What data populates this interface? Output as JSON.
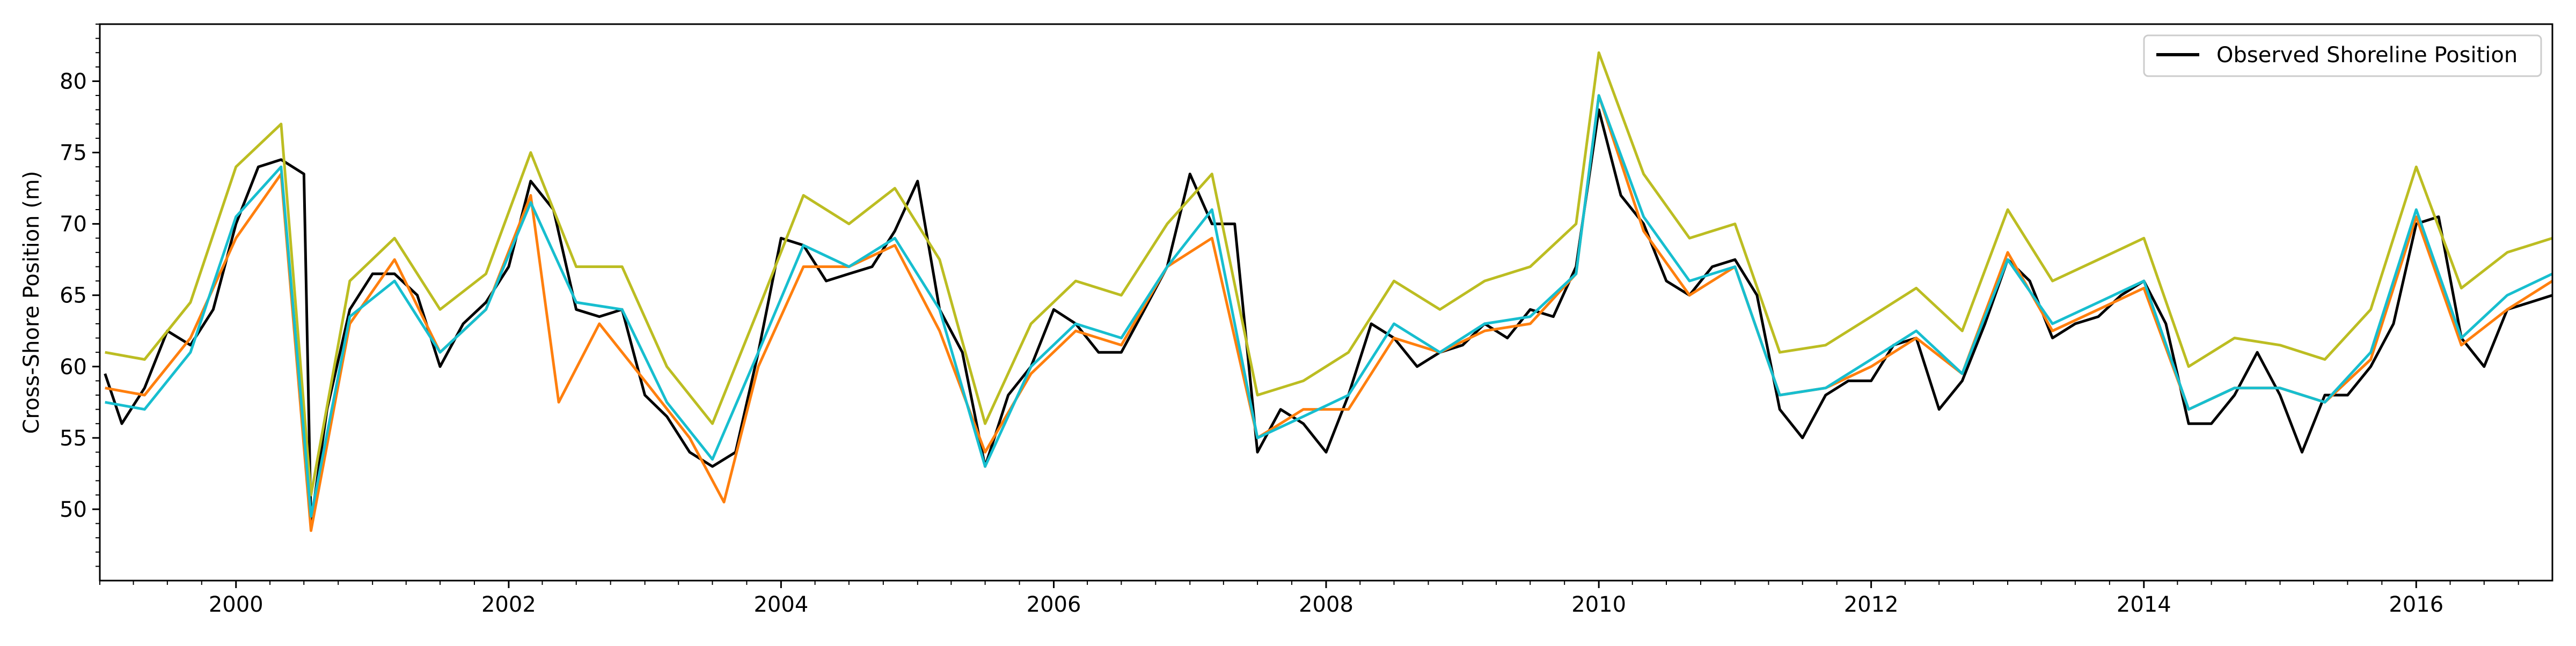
{
  "chart_data": {
    "type": "line",
    "title": "",
    "xlabel": "",
    "ylabel": "Cross-Shore Position (m)",
    "x_range": [
      "1999-01-01",
      "2016-12-31"
    ],
    "ylim": [
      45,
      84
    ],
    "grid": false,
    "legend_position": "top-right",
    "x_ticks": [
      "2000",
      "2002",
      "2004",
      "2006",
      "2008",
      "2010",
      "2012",
      "2014",
      "2016"
    ],
    "y_ticks": [
      50,
      55,
      60,
      65,
      70,
      75,
      80
    ],
    "series": [
      {
        "name": "Observed Shoreline Position",
        "color": "#000000",
        "points": [
          [
            "1999-01-15",
            59.5
          ],
          [
            "1999-03-01",
            56.0
          ],
          [
            "1999-05-01",
            58.5
          ],
          [
            "1999-07-01",
            62.5
          ],
          [
            "1999-09-01",
            61.5
          ],
          [
            "1999-11-01",
            64.0
          ],
          [
            "2000-01-01",
            70.0
          ],
          [
            "2000-03-01",
            74.0
          ],
          [
            "2000-05-01",
            74.5
          ],
          [
            "2000-07-01",
            73.5
          ],
          [
            "2000-07-20",
            49.0
          ],
          [
            "2000-09-01",
            57.0
          ],
          [
            "2000-11-01",
            64.0
          ],
          [
            "2001-01-01",
            66.5
          ],
          [
            "2001-03-01",
            66.5
          ],
          [
            "2001-05-01",
            65.0
          ],
          [
            "2001-07-01",
            60.0
          ],
          [
            "2001-09-01",
            63.0
          ],
          [
            "2001-11-01",
            64.5
          ],
          [
            "2002-01-01",
            67.0
          ],
          [
            "2002-03-01",
            73.0
          ],
          [
            "2002-05-01",
            71.0
          ],
          [
            "2002-07-01",
            64.0
          ],
          [
            "2002-09-01",
            63.5
          ],
          [
            "2002-11-01",
            64.0
          ],
          [
            "2003-01-01",
            58.0
          ],
          [
            "2003-03-01",
            56.5
          ],
          [
            "2003-05-01",
            54.0
          ],
          [
            "2003-07-01",
            53.0
          ],
          [
            "2003-09-01",
            54.0
          ],
          [
            "2003-11-01",
            61.0
          ],
          [
            "2004-01-01",
            69.0
          ],
          [
            "2004-03-01",
            68.5
          ],
          [
            "2004-05-01",
            66.0
          ],
          [
            "2004-07-01",
            66.5
          ],
          [
            "2004-09-01",
            67.0
          ],
          [
            "2004-11-01",
            69.5
          ],
          [
            "2005-01-01",
            73.0
          ],
          [
            "2005-03-01",
            64.0
          ],
          [
            "2005-05-01",
            61.0
          ],
          [
            "2005-07-01",
            53.0
          ],
          [
            "2005-09-01",
            58.0
          ],
          [
            "2005-11-01",
            60.0
          ],
          [
            "2006-01-01",
            64.0
          ],
          [
            "2006-03-01",
            63.0
          ],
          [
            "2006-05-01",
            61.0
          ],
          [
            "2006-07-01",
            61.0
          ],
          [
            "2006-09-01",
            64.0
          ],
          [
            "2006-11-01",
            67.0
          ],
          [
            "2007-01-01",
            73.5
          ],
          [
            "2007-03-01",
            70.0
          ],
          [
            "2007-05-01",
            70.0
          ],
          [
            "2007-07-01",
            54.0
          ],
          [
            "2007-09-01",
            57.0
          ],
          [
            "2007-11-01",
            56.0
          ],
          [
            "2008-01-01",
            54.0
          ],
          [
            "2008-03-01",
            58.0
          ],
          [
            "2008-05-01",
            63.0
          ],
          [
            "2008-07-01",
            62.0
          ],
          [
            "2008-09-01",
            60.0
          ],
          [
            "2008-11-01",
            61.0
          ],
          [
            "2009-01-01",
            61.5
          ],
          [
            "2009-03-01",
            63.0
          ],
          [
            "2009-05-01",
            62.0
          ],
          [
            "2009-07-01",
            64.0
          ],
          [
            "2009-09-01",
            63.5
          ],
          [
            "2009-11-01",
            67.0
          ],
          [
            "2010-01-01",
            78.0
          ],
          [
            "2010-03-01",
            72.0
          ],
          [
            "2010-05-01",
            70.0
          ],
          [
            "2010-07-01",
            66.0
          ],
          [
            "2010-09-01",
            65.0
          ],
          [
            "2010-11-01",
            67.0
          ],
          [
            "2011-01-01",
            67.5
          ],
          [
            "2011-03-01",
            65.0
          ],
          [
            "2011-05-01",
            57.0
          ],
          [
            "2011-07-01",
            55.0
          ],
          [
            "2011-09-01",
            58.0
          ],
          [
            "2011-11-01",
            59.0
          ],
          [
            "2012-01-01",
            59.0
          ],
          [
            "2012-03-01",
            61.5
          ],
          [
            "2012-05-01",
            62.0
          ],
          [
            "2012-07-01",
            57.0
          ],
          [
            "2012-09-01",
            59.0
          ],
          [
            "2012-11-01",
            63.0
          ],
          [
            "2013-01-01",
            67.5
          ],
          [
            "2013-03-01",
            66.0
          ],
          [
            "2013-05-01",
            62.0
          ],
          [
            "2013-07-01",
            63.0
          ],
          [
            "2013-09-01",
            63.5
          ],
          [
            "2013-11-01",
            65.0
          ],
          [
            "2014-01-01",
            66.0
          ],
          [
            "2014-03-01",
            63.0
          ],
          [
            "2014-05-01",
            56.0
          ],
          [
            "2014-07-01",
            56.0
          ],
          [
            "2014-09-01",
            58.0
          ],
          [
            "2014-11-01",
            61.0
          ],
          [
            "2015-01-01",
            58.0
          ],
          [
            "2015-03-01",
            54.0
          ],
          [
            "2015-05-01",
            58.0
          ],
          [
            "2015-07-01",
            58.0
          ],
          [
            "2015-09-01",
            60.0
          ],
          [
            "2015-11-01",
            63.0
          ],
          [
            "2016-01-01",
            70.0
          ],
          [
            "2016-03-01",
            70.5
          ],
          [
            "2016-05-01",
            62.0
          ],
          [
            "2016-07-01",
            60.0
          ],
          [
            "2016-09-01",
            64.0
          ],
          [
            "2016-11-01",
            64.5
          ],
          [
            "2016-12-31",
            65.0
          ]
        ]
      },
      {
        "color": "#ff7f0e",
        "points": [
          [
            "1999-01-15",
            58.5
          ],
          [
            "1999-05-01",
            58.0
          ],
          [
            "1999-09-01",
            62.0
          ],
          [
            "2000-01-01",
            69.0
          ],
          [
            "2000-05-01",
            73.5
          ],
          [
            "2000-07-20",
            48.5
          ],
          [
            "2000-11-01",
            63.0
          ],
          [
            "2001-03-01",
            67.5
          ],
          [
            "2001-07-01",
            61.0
          ],
          [
            "2001-11-01",
            64.0
          ],
          [
            "2002-03-01",
            72.0
          ],
          [
            "2002-05-15",
            57.5
          ],
          [
            "2002-09-01",
            63.0
          ],
          [
            "2003-01-01",
            59.0
          ],
          [
            "2003-05-01",
            55.0
          ],
          [
            "2003-08-01",
            50.5
          ],
          [
            "2003-11-01",
            60.0
          ],
          [
            "2004-03-01",
            67.0
          ],
          [
            "2004-07-01",
            67.0
          ],
          [
            "2004-11-01",
            68.5
          ],
          [
            "2005-03-01",
            62.5
          ],
          [
            "2005-07-01",
            54.0
          ],
          [
            "2005-11-01",
            59.5
          ],
          [
            "2006-03-01",
            62.5
          ],
          [
            "2006-07-01",
            61.5
          ],
          [
            "2006-11-01",
            67.0
          ],
          [
            "2007-03-01",
            69.0
          ],
          [
            "2007-07-01",
            55.0
          ],
          [
            "2007-11-01",
            57.0
          ],
          [
            "2008-03-01",
            57.0
          ],
          [
            "2008-07-01",
            62.0
          ],
          [
            "2008-11-01",
            61.0
          ],
          [
            "2009-03-01",
            62.5
          ],
          [
            "2009-07-01",
            63.0
          ],
          [
            "2009-11-01",
            66.5
          ],
          [
            "2010-01-01",
            79.0
          ],
          [
            "2010-05-01",
            69.5
          ],
          [
            "2010-09-01",
            65.0
          ],
          [
            "2011-01-01",
            67.0
          ],
          [
            "2011-05-01",
            58.0
          ],
          [
            "2011-09-01",
            58.5
          ],
          [
            "2012-01-01",
            60.0
          ],
          [
            "2012-05-01",
            62.0
          ],
          [
            "2012-09-01",
            59.5
          ],
          [
            "2013-01-01",
            68.0
          ],
          [
            "2013-05-01",
            62.5
          ],
          [
            "2013-09-01",
            64.0
          ],
          [
            "2014-01-01",
            65.5
          ],
          [
            "2014-05-01",
            57.0
          ],
          [
            "2014-09-01",
            58.5
          ],
          [
            "2015-01-01",
            58.5
          ],
          [
            "2015-05-01",
            57.5
          ],
          [
            "2015-09-01",
            60.5
          ],
          [
            "2016-01-01",
            70.5
          ],
          [
            "2016-05-01",
            61.5
          ],
          [
            "2016-09-01",
            64.0
          ],
          [
            "2016-12-31",
            66.0
          ]
        ]
      },
      {
        "color": "#bcbd22",
        "points": [
          [
            "1999-01-15",
            61.0
          ],
          [
            "1999-05-01",
            60.5
          ],
          [
            "1999-09-01",
            64.5
          ],
          [
            "2000-01-01",
            74.0
          ],
          [
            "2000-05-01",
            77.0
          ],
          [
            "2000-07-20",
            51.0
          ],
          [
            "2000-11-01",
            66.0
          ],
          [
            "2001-03-01",
            69.0
          ],
          [
            "2001-07-01",
            64.0
          ],
          [
            "2001-11-01",
            66.5
          ],
          [
            "2002-03-01",
            75.0
          ],
          [
            "2002-07-01",
            67.0
          ],
          [
            "2002-11-01",
            67.0
          ],
          [
            "2003-03-01",
            60.0
          ],
          [
            "2003-07-01",
            56.0
          ],
          [
            "2003-11-01",
            64.0
          ],
          [
            "2004-03-01",
            72.0
          ],
          [
            "2004-07-01",
            70.0
          ],
          [
            "2004-11-01",
            72.5
          ],
          [
            "2005-03-01",
            67.5
          ],
          [
            "2005-07-01",
            56.0
          ],
          [
            "2005-11-01",
            63.0
          ],
          [
            "2006-03-01",
            66.0
          ],
          [
            "2006-07-01",
            65.0
          ],
          [
            "2006-11-01",
            70.0
          ],
          [
            "2007-03-01",
            73.5
          ],
          [
            "2007-07-01",
            58.0
          ],
          [
            "2007-11-01",
            59.0
          ],
          [
            "2008-03-01",
            61.0
          ],
          [
            "2008-07-01",
            66.0
          ],
          [
            "2008-11-01",
            64.0
          ],
          [
            "2009-03-01",
            66.0
          ],
          [
            "2009-07-01",
            67.0
          ],
          [
            "2009-11-01",
            70.0
          ],
          [
            "2010-01-01",
            82.0
          ],
          [
            "2010-05-01",
            73.5
          ],
          [
            "2010-09-01",
            69.0
          ],
          [
            "2011-01-01",
            70.0
          ],
          [
            "2011-05-01",
            61.0
          ],
          [
            "2011-09-01",
            61.5
          ],
          [
            "2012-01-01",
            63.5
          ],
          [
            "2012-05-01",
            65.5
          ],
          [
            "2012-09-01",
            62.5
          ],
          [
            "2013-01-01",
            71.0
          ],
          [
            "2013-05-01",
            66.0
          ],
          [
            "2013-09-01",
            67.5
          ],
          [
            "2014-01-01",
            69.0
          ],
          [
            "2014-05-01",
            60.0
          ],
          [
            "2014-09-01",
            62.0
          ],
          [
            "2015-01-01",
            61.5
          ],
          [
            "2015-05-01",
            60.5
          ],
          [
            "2015-09-01",
            64.0
          ],
          [
            "2016-01-01",
            74.0
          ],
          [
            "2016-05-01",
            65.5
          ],
          [
            "2016-09-01",
            68.0
          ],
          [
            "2016-12-31",
            69.0
          ]
        ]
      },
      {
        "color": "#17becf",
        "points": [
          [
            "1999-01-15",
            57.5
          ],
          [
            "1999-05-01",
            57.0
          ],
          [
            "1999-09-01",
            61.0
          ],
          [
            "2000-01-01",
            70.5
          ],
          [
            "2000-05-01",
            74.0
          ],
          [
            "2000-07-20",
            49.5
          ],
          [
            "2000-11-01",
            63.5
          ],
          [
            "2001-03-01",
            66.0
          ],
          [
            "2001-07-01",
            61.0
          ],
          [
            "2001-11-01",
            64.0
          ],
          [
            "2002-03-01",
            71.5
          ],
          [
            "2002-07-01",
            64.5
          ],
          [
            "2002-11-01",
            64.0
          ],
          [
            "2003-03-01",
            57.5
          ],
          [
            "2003-07-01",
            53.5
          ],
          [
            "2003-11-01",
            61.0
          ],
          [
            "2004-03-01",
            68.5
          ],
          [
            "2004-07-01",
            67.0
          ],
          [
            "2004-11-01",
            69.0
          ],
          [
            "2005-03-01",
            64.0
          ],
          [
            "2005-07-01",
            53.0
          ],
          [
            "2005-11-01",
            60.0
          ],
          [
            "2006-03-01",
            63.0
          ],
          [
            "2006-07-01",
            62.0
          ],
          [
            "2006-11-01",
            67.0
          ],
          [
            "2007-03-01",
            71.0
          ],
          [
            "2007-07-01",
            55.0
          ],
          [
            "2007-11-01",
            56.5
          ],
          [
            "2008-03-01",
            58.0
          ],
          [
            "2008-07-01",
            63.0
          ],
          [
            "2008-11-01",
            61.0
          ],
          [
            "2009-03-01",
            63.0
          ],
          [
            "2009-07-01",
            63.5
          ],
          [
            "2009-11-01",
            66.5
          ],
          [
            "2010-01-01",
            79.0
          ],
          [
            "2010-05-01",
            70.5
          ],
          [
            "2010-09-01",
            66.0
          ],
          [
            "2011-01-01",
            67.0
          ],
          [
            "2011-05-01",
            58.0
          ],
          [
            "2011-09-01",
            58.5
          ],
          [
            "2012-01-01",
            60.5
          ],
          [
            "2012-05-01",
            62.5
          ],
          [
            "2012-09-01",
            59.5
          ],
          [
            "2013-01-01",
            67.5
          ],
          [
            "2013-05-01",
            63.0
          ],
          [
            "2013-09-01",
            64.5
          ],
          [
            "2014-01-01",
            66.0
          ],
          [
            "2014-05-01",
            57.0
          ],
          [
            "2014-09-01",
            58.5
          ],
          [
            "2015-01-01",
            58.5
          ],
          [
            "2015-05-01",
            57.5
          ],
          [
            "2015-09-01",
            61.0
          ],
          [
            "2016-01-01",
            71.0
          ],
          [
            "2016-05-01",
            62.0
          ],
          [
            "2016-09-01",
            65.0
          ],
          [
            "2016-12-31",
            66.5
          ]
        ]
      }
    ]
  }
}
